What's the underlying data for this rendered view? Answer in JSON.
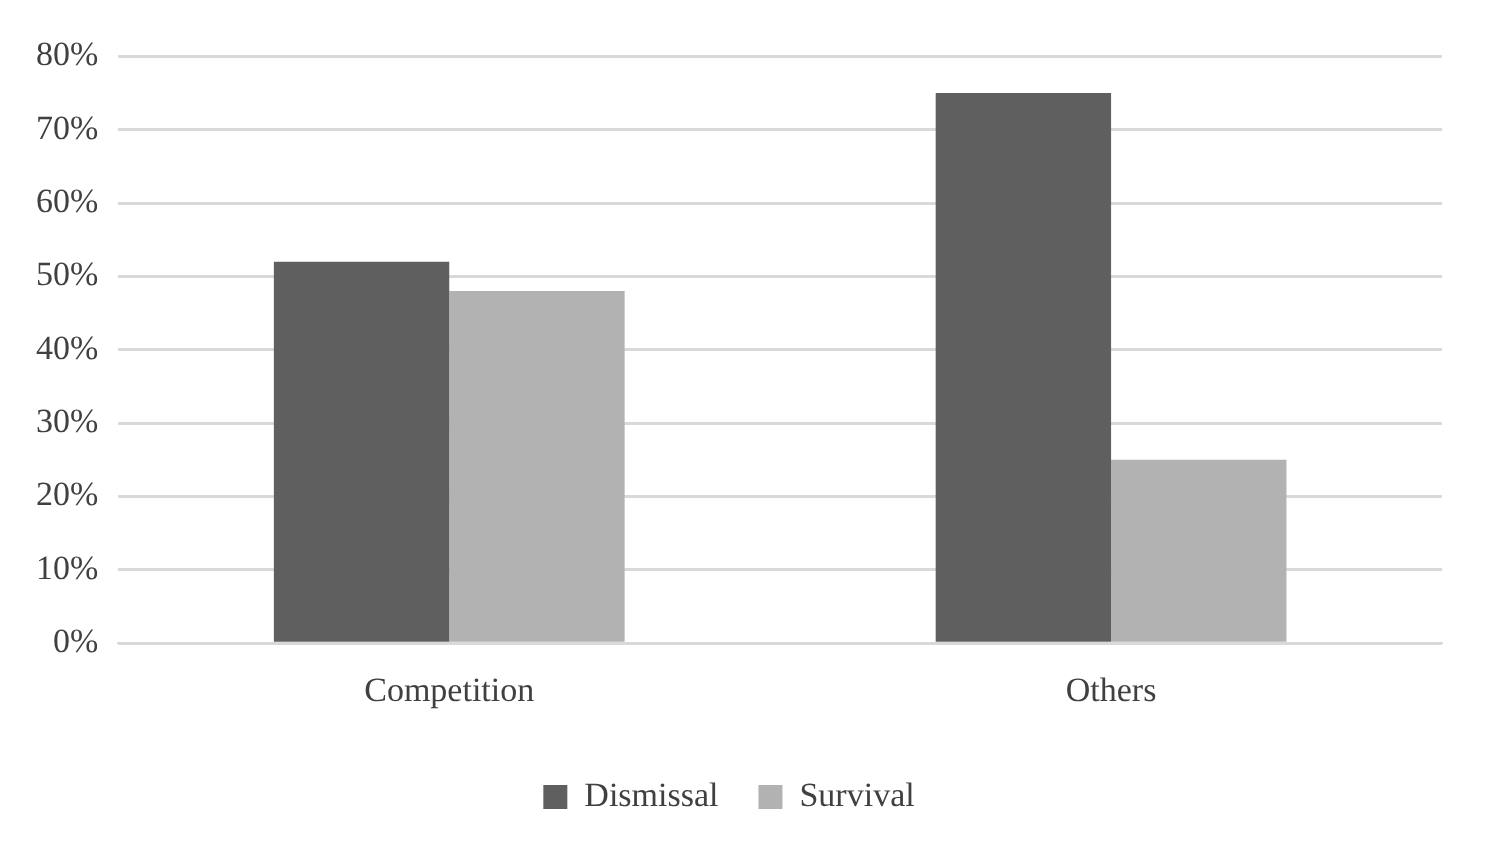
{
  "chart_data": {
    "type": "bar",
    "categories": [
      "Competition",
      "Others"
    ],
    "series": [
      {
        "name": "Dismissal",
        "color": "#5f5f5f",
        "values": [
          52,
          75
        ]
      },
      {
        "name": "Survival",
        "color": "#b2b2b2",
        "values": [
          48,
          25
        ]
      }
    ],
    "ylim": [
      0,
      80
    ],
    "yticks": [
      {
        "value": 0,
        "label": "0%"
      },
      {
        "value": 10,
        "label": "10%"
      },
      {
        "value": 20,
        "label": "20%"
      },
      {
        "value": 30,
        "label": "30%"
      },
      {
        "value": 40,
        "label": "40%"
      },
      {
        "value": 50,
        "label": "50%"
      },
      {
        "value": 60,
        "label": "60%"
      },
      {
        "value": 70,
        "label": "70%"
      },
      {
        "value": 80,
        "label": "80%"
      }
    ],
    "grid": "y",
    "legend": "bottom"
  }
}
